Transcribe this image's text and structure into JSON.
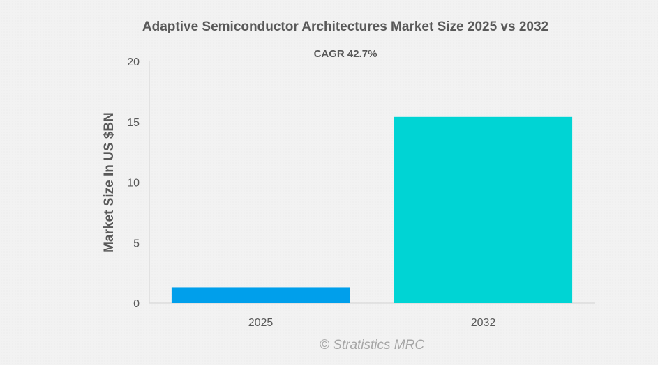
{
  "chart_data": {
    "type": "bar",
    "title": "Adaptive Semiconductor Architectures  Market Size 2025 vs 2032",
    "subtitle": "CAGR 42.7%",
    "categories": [
      "2025",
      "2032"
    ],
    "values": [
      1.3,
      15.4
    ],
    "xlabel": "",
    "ylabel": "Market Size In US $BN",
    "ylim": [
      0,
      20
    ],
    "yticks": [
      "0",
      "5",
      "10",
      "15",
      "20"
    ],
    "colors": [
      "#009FEB",
      "#00D4D4"
    ],
    "grid": false,
    "legend": "none"
  },
  "watermark": "© Stratistics MRC"
}
